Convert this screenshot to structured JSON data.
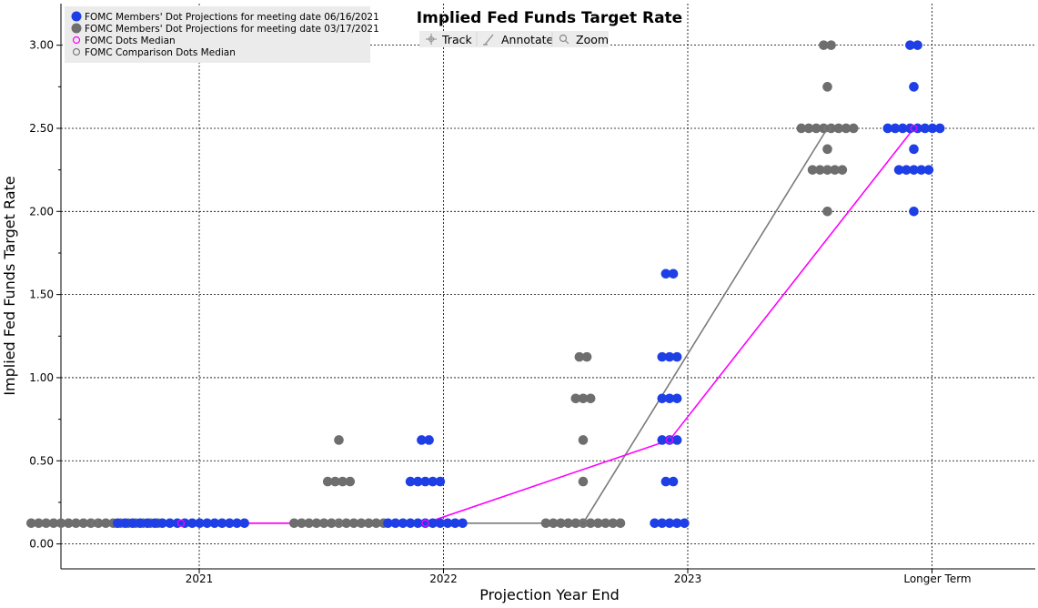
{
  "toolbar": {
    "track_label": "Track",
    "annotate_label": "Annotate",
    "zoom_label": "Zoom"
  },
  "colors": {
    "current_dots": "#1f3fe6",
    "comparison_dots": "#6e6e6e",
    "median_line": "#ff00ff",
    "comparison_line": "#7a7a7a"
  },
  "chart_data": {
    "type": "scatter",
    "title": "Implied Fed Funds Target Rate",
    "xlabel": "Projection Year End",
    "ylabel": "Implied Fed Funds Target Rate",
    "categories": [
      "2021",
      "2022",
      "2023",
      "Longer Term"
    ],
    "ylim": [
      -0.15,
      3.25
    ],
    "yticks": [
      "0.00",
      "0.50",
      "1.00",
      "1.50",
      "2.00",
      "2.50",
      "3.00"
    ],
    "grid": true,
    "legend_position": "top-left",
    "legend": [
      "FOMC Members' Dot Projections for meeting date 06/16/2021",
      "FOMC Members' Dot Projections for meeting date 03/17/2021",
      "FOMC Dots Median",
      "FOMC Comparison Dots Median"
    ],
    "series": [
      {
        "name": "FOMC Members' Dot Projections for meeting date 06/16/2021",
        "role": "current",
        "groups": [
          {
            "category": "2021",
            "rows": [
              {
                "rate": 0.125,
                "count": 18
              }
            ]
          },
          {
            "category": "2022",
            "rows": [
              {
                "rate": 0.125,
                "count": 11
              },
              {
                "rate": 0.375,
                "count": 5
              },
              {
                "rate": 0.625,
                "count": 2
              }
            ]
          },
          {
            "category": "2023",
            "rows": [
              {
                "rate": 0.125,
                "count": 5
              },
              {
                "rate": 0.375,
                "count": 2
              },
              {
                "rate": 0.625,
                "count": 3
              },
              {
                "rate": 0.875,
                "count": 3
              },
              {
                "rate": 1.125,
                "count": 3
              },
              {
                "rate": 1.625,
                "count": 2
              }
            ]
          },
          {
            "category": "Longer Term",
            "rows": [
              {
                "rate": 2.0,
                "count": 1
              },
              {
                "rate": 2.25,
                "count": 5
              },
              {
                "rate": 2.375,
                "count": 1
              },
              {
                "rate": 2.5,
                "count": 8
              },
              {
                "rate": 2.75,
                "count": 1
              },
              {
                "rate": 3.0,
                "count": 2
              }
            ]
          }
        ]
      },
      {
        "name": "FOMC Members' Dot Projections for meeting date 03/17/2021",
        "role": "comparison",
        "groups": [
          {
            "category": "2021",
            "rows": [
              {
                "rate": 0.125,
                "count": 18
              }
            ]
          },
          {
            "category": "2022",
            "rows": [
              {
                "rate": 0.125,
                "count": 13
              },
              {
                "rate": 0.375,
                "count": 4
              },
              {
                "rate": 0.625,
                "count": 1
              }
            ]
          },
          {
            "category": "2023",
            "rows": [
              {
                "rate": 0.125,
                "count": 11
              },
              {
                "rate": 0.375,
                "count": 1
              },
              {
                "rate": 0.625,
                "count": 1
              },
              {
                "rate": 0.875,
                "count": 3
              },
              {
                "rate": 1.125,
                "count": 2
              }
            ]
          },
          {
            "category": "Longer Term",
            "rows": [
              {
                "rate": 2.0,
                "count": 1
              },
              {
                "rate": 2.25,
                "count": 5
              },
              {
                "rate": 2.375,
                "count": 1
              },
              {
                "rate": 2.5,
                "count": 8
              },
              {
                "rate": 2.75,
                "count": 1
              },
              {
                "rate": 3.0,
                "count": 2
              }
            ]
          }
        ]
      }
    ],
    "medians": [
      {
        "name": "FOMC Dots Median",
        "role": "current",
        "values": [
          0.125,
          0.125,
          0.625,
          2.5
        ]
      },
      {
        "name": "FOMC Comparison Dots Median",
        "role": "comparison",
        "values": [
          0.125,
          0.125,
          0.125,
          2.5
        ]
      }
    ]
  }
}
